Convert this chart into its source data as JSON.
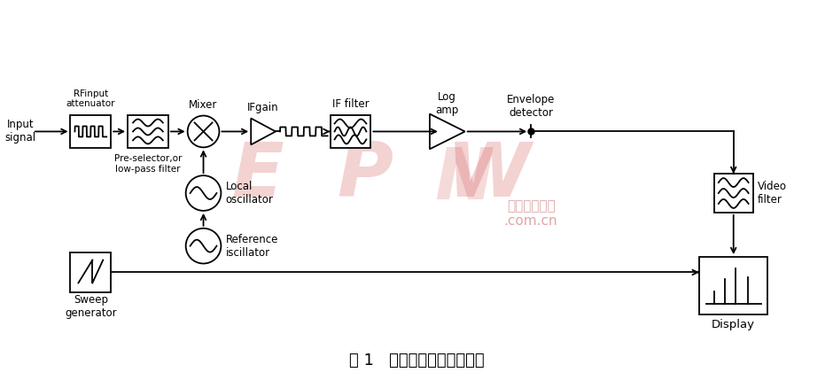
{
  "title": "图 1   频谱分析仪的原理框图",
  "title_fontsize": 13,
  "background_color": "#ffffff",
  "text_color": "#000000",
  "line_color": "#000000",
  "watermark_epw": "EPWN",
  "watermark_cn": "电子产品世界\n.com.cn",
  "watermark_epw_color": "#cc3333",
  "watermark_cn_color": "#d08080",
  "labels": {
    "input_signal": "Input\nsignal",
    "rf_attenuator": "RFinput\nattenuator",
    "pre_selector": "Pre-selector,or\nlow-pass filter",
    "mixer": "Mixer",
    "if_gain": "IFgain",
    "if_filter": "IF filter",
    "log_amp": "Log\namp",
    "envelope_detector": "Envelope\ndetector",
    "local_oscillator": "Local\noscillator",
    "reference_oscillator": "Reference\niscillator",
    "sweep_generator": "Sweep\ngenerator",
    "video_filter": "Video\nfilter",
    "display": "Display"
  }
}
